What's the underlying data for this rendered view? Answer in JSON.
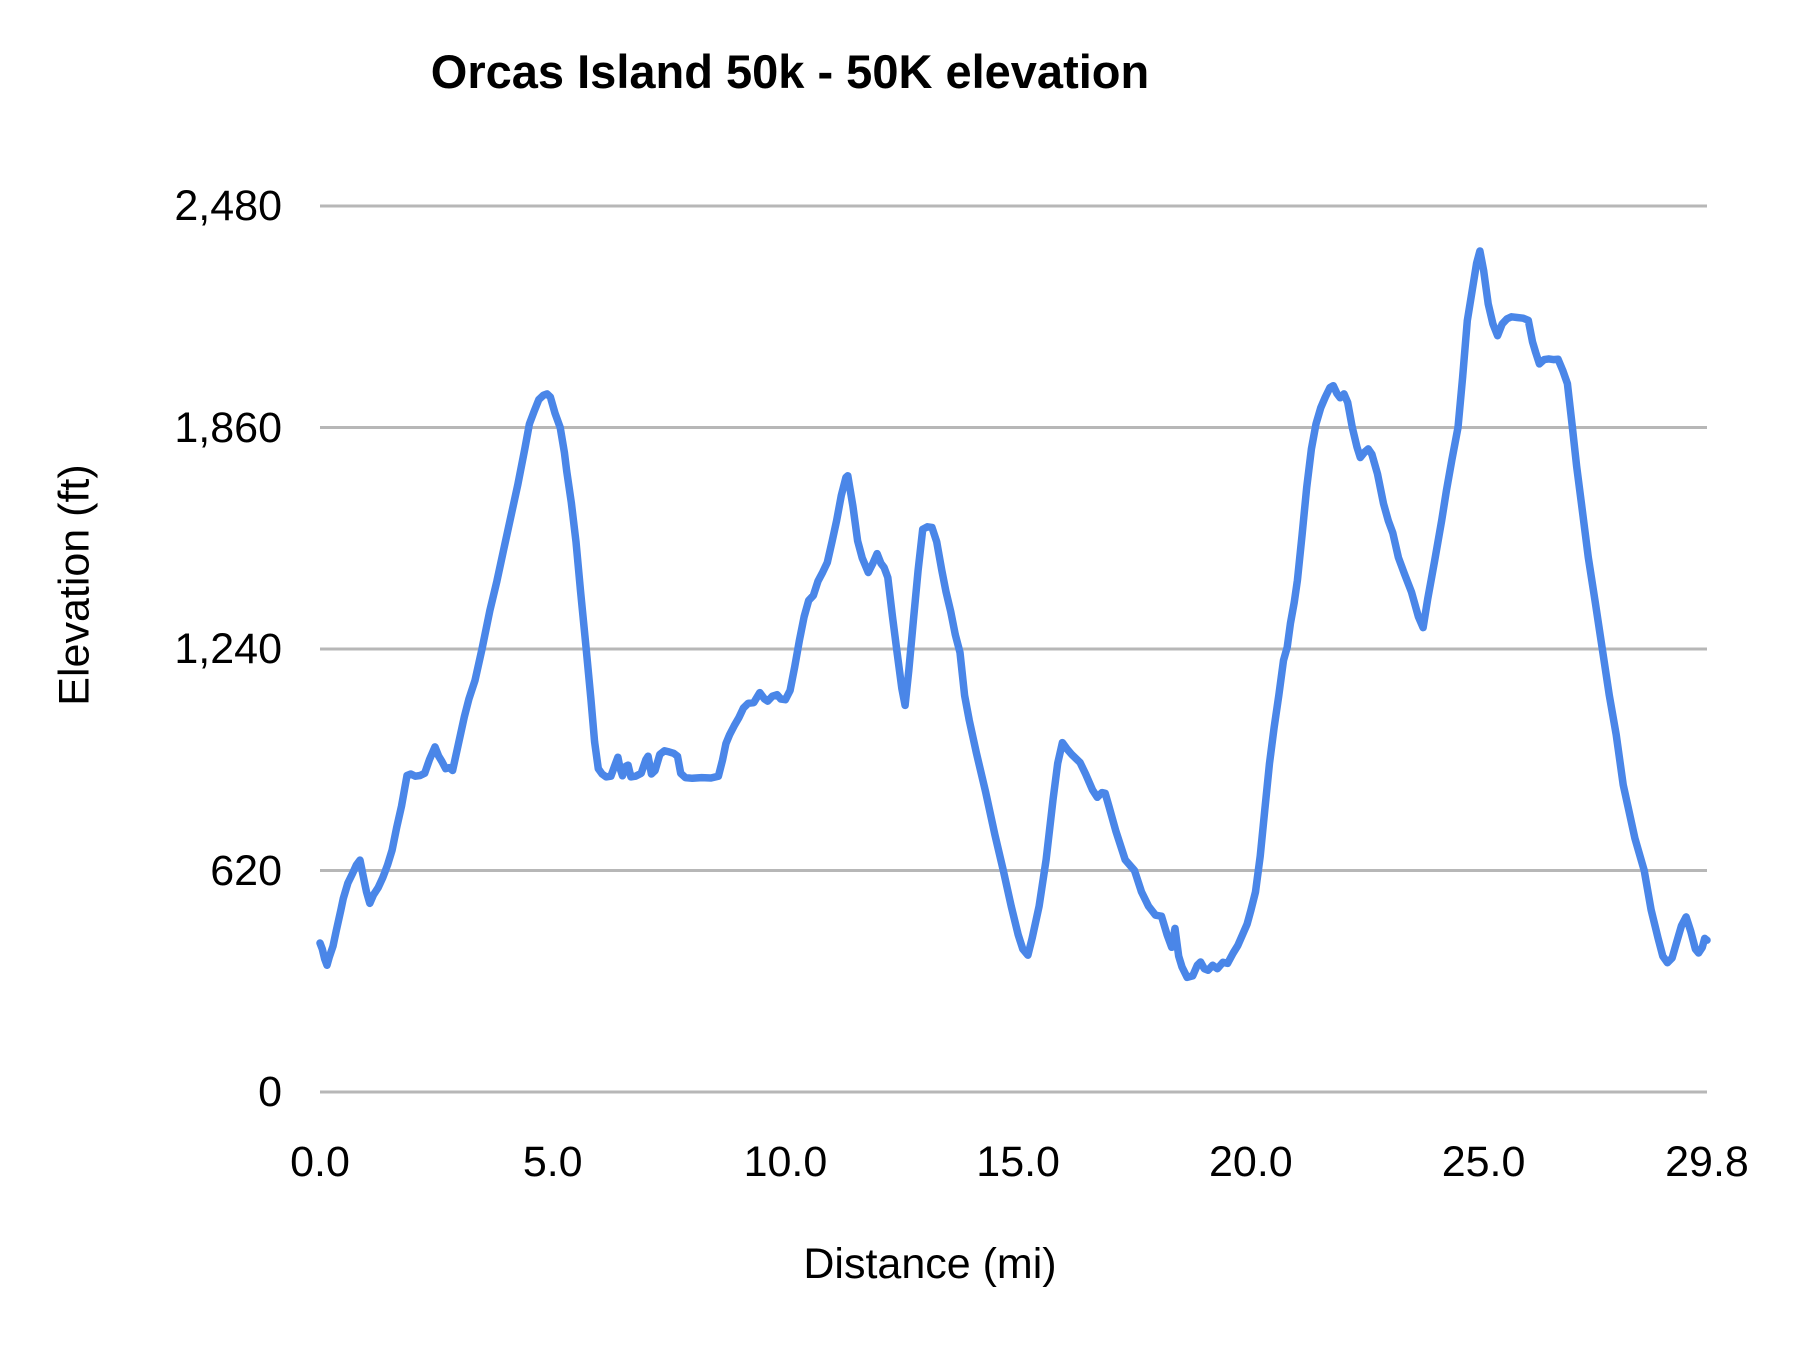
{
  "title": "Orcas Island 50k - 50K elevation",
  "chart_data": {
    "type": "line",
    "title": "Orcas Island 50k - 50K elevation",
    "xlabel": "Distance (mi)",
    "ylabel": "Elevation (ft)",
    "xlim": [
      0,
      29.8
    ],
    "ylim": [
      0,
      2480
    ],
    "x_ticks": [
      {
        "label": "0.0",
        "value": 0
      },
      {
        "label": "5.0",
        "value": 5
      },
      {
        "label": "10.0",
        "value": 10
      },
      {
        "label": "15.0",
        "value": 15
      },
      {
        "label": "20.0",
        "value": 20
      },
      {
        "label": "25.0",
        "value": 25
      },
      {
        "label": "29.8",
        "value": 29.8
      }
    ],
    "y_ticks": [
      {
        "label": "0",
        "value": 0
      },
      {
        "label": "620",
        "value": 620
      },
      {
        "label": "1,240",
        "value": 1240
      },
      {
        "label": "1,860",
        "value": 1860
      },
      {
        "label": "2,480",
        "value": 2480
      }
    ],
    "grid": "horizontal-only",
    "legend": "none",
    "line_color": "#4a86e8",
    "gridline_color": "#b7b7b7",
    "series": [
      {
        "name": "elevation",
        "points": [
          [
            0.0,
            417
          ],
          [
            0.05,
            400
          ],
          [
            0.1,
            372
          ],
          [
            0.15,
            355
          ],
          [
            0.2,
            378
          ],
          [
            0.28,
            408
          ],
          [
            0.35,
            452
          ],
          [
            0.45,
            510
          ],
          [
            0.5,
            542
          ],
          [
            0.6,
            585
          ],
          [
            0.7,
            612
          ],
          [
            0.78,
            635
          ],
          [
            0.86,
            649
          ],
          [
            0.92,
            610
          ],
          [
            1.0,
            560
          ],
          [
            1.07,
            528
          ],
          [
            1.15,
            552
          ],
          [
            1.25,
            572
          ],
          [
            1.35,
            600
          ],
          [
            1.45,
            635
          ],
          [
            1.55,
            677
          ],
          [
            1.65,
            742
          ],
          [
            1.75,
            800
          ],
          [
            1.87,
            886
          ],
          [
            1.95,
            890
          ],
          [
            2.05,
            884
          ],
          [
            2.15,
            886
          ],
          [
            2.25,
            892
          ],
          [
            2.35,
            930
          ],
          [
            2.47,
            966
          ],
          [
            2.55,
            940
          ],
          [
            2.62,
            925
          ],
          [
            2.7,
            905
          ],
          [
            2.78,
            908
          ],
          [
            2.85,
            900
          ],
          [
            2.95,
            960
          ],
          [
            3.1,
            1050
          ],
          [
            3.2,
            1100
          ],
          [
            3.33,
            1152
          ],
          [
            3.48,
            1240
          ],
          [
            3.65,
            1348
          ],
          [
            3.8,
            1430
          ],
          [
            3.95,
            1520
          ],
          [
            4.1,
            1610
          ],
          [
            4.25,
            1700
          ],
          [
            4.4,
            1800
          ],
          [
            4.5,
            1870
          ],
          [
            4.6,
            1905
          ],
          [
            4.7,
            1938
          ],
          [
            4.8,
            1950
          ],
          [
            4.88,
            1954
          ],
          [
            4.95,
            1945
          ],
          [
            5.05,
            1900
          ],
          [
            5.16,
            1860
          ],
          [
            5.25,
            1790
          ],
          [
            5.3,
            1738
          ],
          [
            5.4,
            1650
          ],
          [
            5.5,
            1540
          ],
          [
            5.6,
            1400
          ],
          [
            5.72,
            1240
          ],
          [
            5.82,
            1100
          ],
          [
            5.9,
            980
          ],
          [
            5.98,
            905
          ],
          [
            6.06,
            890
          ],
          [
            6.15,
            882
          ],
          [
            6.25,
            884
          ],
          [
            6.35,
            920
          ],
          [
            6.4,
            937
          ],
          [
            6.45,
            905
          ],
          [
            6.5,
            885
          ],
          [
            6.57,
            912
          ],
          [
            6.62,
            915
          ],
          [
            6.68,
            882
          ],
          [
            6.78,
            884
          ],
          [
            6.9,
            892
          ],
          [
            7.0,
            930
          ],
          [
            7.05,
            940
          ],
          [
            7.12,
            890
          ],
          [
            7.2,
            900
          ],
          [
            7.3,
            945
          ],
          [
            7.4,
            955
          ],
          [
            7.5,
            952
          ],
          [
            7.6,
            948
          ],
          [
            7.68,
            940
          ],
          [
            7.75,
            892
          ],
          [
            7.85,
            880
          ],
          [
            8.0,
            878
          ],
          [
            8.2,
            880
          ],
          [
            8.4,
            879
          ],
          [
            8.56,
            884
          ],
          [
            8.65,
            930
          ],
          [
            8.72,
            975
          ],
          [
            8.8,
            1000
          ],
          [
            8.9,
            1025
          ],
          [
            9.0,
            1048
          ],
          [
            9.1,
            1075
          ],
          [
            9.2,
            1088
          ],
          [
            9.32,
            1090
          ],
          [
            9.45,
            1118
          ],
          [
            9.55,
            1100
          ],
          [
            9.62,
            1094
          ],
          [
            9.72,
            1108
          ],
          [
            9.82,
            1112
          ],
          [
            9.9,
            1100
          ],
          [
            10.0,
            1098
          ],
          [
            10.1,
            1124
          ],
          [
            10.2,
            1190
          ],
          [
            10.3,
            1264
          ],
          [
            10.4,
            1330
          ],
          [
            10.5,
            1376
          ],
          [
            10.6,
            1390
          ],
          [
            10.7,
            1430
          ],
          [
            10.8,
            1455
          ],
          [
            10.9,
            1482
          ],
          [
            11.0,
            1540
          ],
          [
            11.1,
            1599
          ],
          [
            11.2,
            1670
          ],
          [
            11.3,
            1720
          ],
          [
            11.34,
            1725
          ],
          [
            11.45,
            1640
          ],
          [
            11.55,
            1543
          ],
          [
            11.65,
            1495
          ],
          [
            11.78,
            1454
          ],
          [
            11.88,
            1480
          ],
          [
            11.97,
            1507
          ],
          [
            12.05,
            1480
          ],
          [
            12.12,
            1468
          ],
          [
            12.2,
            1440
          ],
          [
            12.3,
            1330
          ],
          [
            12.4,
            1230
          ],
          [
            12.5,
            1130
          ],
          [
            12.57,
            1082
          ],
          [
            12.65,
            1180
          ],
          [
            12.75,
            1320
          ],
          [
            12.85,
            1460
          ],
          [
            12.95,
            1575
          ],
          [
            13.05,
            1582
          ],
          [
            13.15,
            1580
          ],
          [
            13.25,
            1540
          ],
          [
            13.36,
            1460
          ],
          [
            13.45,
            1400
          ],
          [
            13.55,
            1345
          ],
          [
            13.65,
            1280
          ],
          [
            13.75,
            1230
          ],
          [
            13.85,
            1110
          ],
          [
            13.95,
            1040
          ],
          [
            14.1,
            950
          ],
          [
            14.3,
            840
          ],
          [
            14.5,
            720
          ],
          [
            14.68,
            620
          ],
          [
            14.85,
            520
          ],
          [
            15.0,
            440
          ],
          [
            15.1,
            400
          ],
          [
            15.21,
            383
          ],
          [
            15.3,
            430
          ],
          [
            15.45,
            520
          ],
          [
            15.6,
            650
          ],
          [
            15.75,
            820
          ],
          [
            15.85,
            920
          ],
          [
            15.95,
            978
          ],
          [
            16.05,
            960
          ],
          [
            16.15,
            945
          ],
          [
            16.33,
            922
          ],
          [
            16.45,
            890
          ],
          [
            16.6,
            845
          ],
          [
            16.7,
            825
          ],
          [
            16.8,
            838
          ],
          [
            16.87,
            836
          ],
          [
            16.95,
            800
          ],
          [
            17.1,
            730
          ],
          [
            17.3,
            650
          ],
          [
            17.5,
            620
          ],
          [
            17.65,
            560
          ],
          [
            17.8,
            520
          ],
          [
            17.95,
            495
          ],
          [
            18.08,
            492
          ],
          [
            18.2,
            440
          ],
          [
            18.3,
            405
          ],
          [
            18.37,
            458
          ],
          [
            18.45,
            380
          ],
          [
            18.52,
            350
          ],
          [
            18.63,
            321
          ],
          [
            18.75,
            325
          ],
          [
            18.85,
            355
          ],
          [
            18.92,
            364
          ],
          [
            19.0,
            345
          ],
          [
            19.08,
            341
          ],
          [
            19.18,
            355
          ],
          [
            19.28,
            345
          ],
          [
            19.4,
            363
          ],
          [
            19.5,
            360
          ],
          [
            19.62,
            389
          ],
          [
            19.72,
            410
          ],
          [
            19.82,
            440
          ],
          [
            19.92,
            470
          ],
          [
            20.0,
            509
          ],
          [
            20.1,
            560
          ],
          [
            20.2,
            660
          ],
          [
            20.3,
            790
          ],
          [
            20.4,
            920
          ],
          [
            20.5,
            1020
          ],
          [
            20.6,
            1110
          ],
          [
            20.7,
            1208
          ],
          [
            20.78,
            1245
          ],
          [
            20.85,
            1311
          ],
          [
            20.93,
            1370
          ],
          [
            21.0,
            1432
          ],
          [
            21.1,
            1560
          ],
          [
            21.2,
            1692
          ],
          [
            21.3,
            1800
          ],
          [
            21.4,
            1870
          ],
          [
            21.5,
            1915
          ],
          [
            21.6,
            1945
          ],
          [
            21.7,
            1972
          ],
          [
            21.77,
            1977
          ],
          [
            21.85,
            1955
          ],
          [
            21.92,
            1943
          ],
          [
            22.0,
            1954
          ],
          [
            22.08,
            1930
          ],
          [
            22.18,
            1860
          ],
          [
            22.28,
            1805
          ],
          [
            22.35,
            1776
          ],
          [
            22.45,
            1792
          ],
          [
            22.52,
            1800
          ],
          [
            22.6,
            1785
          ],
          [
            22.72,
            1730
          ],
          [
            22.85,
            1647
          ],
          [
            22.95,
            1600
          ],
          [
            23.05,
            1565
          ],
          [
            23.17,
            1496
          ],
          [
            23.3,
            1450
          ],
          [
            23.45,
            1400
          ],
          [
            23.6,
            1330
          ],
          [
            23.7,
            1300
          ],
          [
            23.8,
            1380
          ],
          [
            23.95,
            1488
          ],
          [
            24.1,
            1600
          ],
          [
            24.2,
            1683
          ],
          [
            24.32,
            1770
          ],
          [
            24.45,
            1860
          ],
          [
            24.55,
            2000
          ],
          [
            24.65,
            2159
          ],
          [
            24.75,
            2240
          ],
          [
            24.85,
            2320
          ],
          [
            24.92,
            2354
          ],
          [
            25.0,
            2300
          ],
          [
            25.1,
            2206
          ],
          [
            25.2,
            2150
          ],
          [
            25.3,
            2117
          ],
          [
            25.4,
            2150
          ],
          [
            25.5,
            2164
          ],
          [
            25.6,
            2170
          ],
          [
            25.72,
            2168
          ],
          [
            25.85,
            2166
          ],
          [
            25.96,
            2160
          ],
          [
            26.05,
            2100
          ],
          [
            26.12,
            2070
          ],
          [
            26.2,
            2038
          ],
          [
            26.3,
            2050
          ],
          [
            26.4,
            2052
          ],
          [
            26.5,
            2050
          ],
          [
            26.6,
            2051
          ],
          [
            26.7,
            2020
          ],
          [
            26.8,
            1983
          ],
          [
            26.9,
            1870
          ],
          [
            27.0,
            1750
          ],
          [
            27.1,
            1650
          ],
          [
            27.25,
            1496
          ],
          [
            27.4,
            1370
          ],
          [
            27.55,
            1240
          ],
          [
            27.7,
            1110
          ],
          [
            27.85,
            1000
          ],
          [
            28.0,
            860
          ],
          [
            28.1,
            800
          ],
          [
            28.25,
            710
          ],
          [
            28.45,
            620
          ],
          [
            28.6,
            510
          ],
          [
            28.75,
            430
          ],
          [
            28.85,
            380
          ],
          [
            28.95,
            362
          ],
          [
            29.05,
            375
          ],
          [
            29.15,
            420
          ],
          [
            29.25,
            465
          ],
          [
            29.35,
            490
          ],
          [
            29.45,
            450
          ],
          [
            29.55,
            400
          ],
          [
            29.62,
            389
          ],
          [
            29.7,
            405
          ],
          [
            29.75,
            430
          ],
          [
            29.8,
            425
          ]
        ]
      }
    ]
  }
}
